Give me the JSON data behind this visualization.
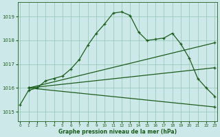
{
  "background_color": "#cce8e8",
  "line_color": "#1a5c1a",
  "grid_color": "#99ccbb",
  "xlabel": "Graphe pression niveau de la mer (hPa)",
  "ylim": [
    1014.6,
    1019.6
  ],
  "xlim": [
    -0.3,
    23.3
  ],
  "yticks": [
    1015,
    1016,
    1017,
    1018,
    1019
  ],
  "xticks": [
    0,
    1,
    2,
    3,
    4,
    5,
    6,
    7,
    8,
    9,
    10,
    11,
    12,
    13,
    14,
    15,
    16,
    17,
    18,
    19,
    20,
    21,
    22,
    23
  ],
  "main_series": {
    "x": [
      0,
      1,
      2,
      3,
      4,
      5,
      6,
      7,
      8,
      9,
      10,
      11,
      12,
      13,
      14,
      15,
      16,
      17,
      18,
      19,
      20,
      21,
      22,
      23
    ],
    "y": [
      1015.3,
      1015.9,
      1016.0,
      1016.3,
      1016.4,
      1016.5,
      1016.8,
      1017.2,
      1017.8,
      1018.3,
      1018.7,
      1019.15,
      1019.2,
      1019.05,
      1018.35,
      1018.0,
      1018.05,
      1018.1,
      1018.3,
      1017.85,
      1017.25,
      1016.4,
      1016.0,
      1015.65
    ]
  },
  "straight_lines": [
    {
      "x": [
        1,
        23
      ],
      "y": [
        1016.0,
        1017.9
      ]
    },
    {
      "x": [
        1,
        23
      ],
      "y": [
        1016.0,
        1016.85
      ]
    },
    {
      "x": [
        1,
        23
      ],
      "y": [
        1016.0,
        1015.2
      ]
    }
  ]
}
